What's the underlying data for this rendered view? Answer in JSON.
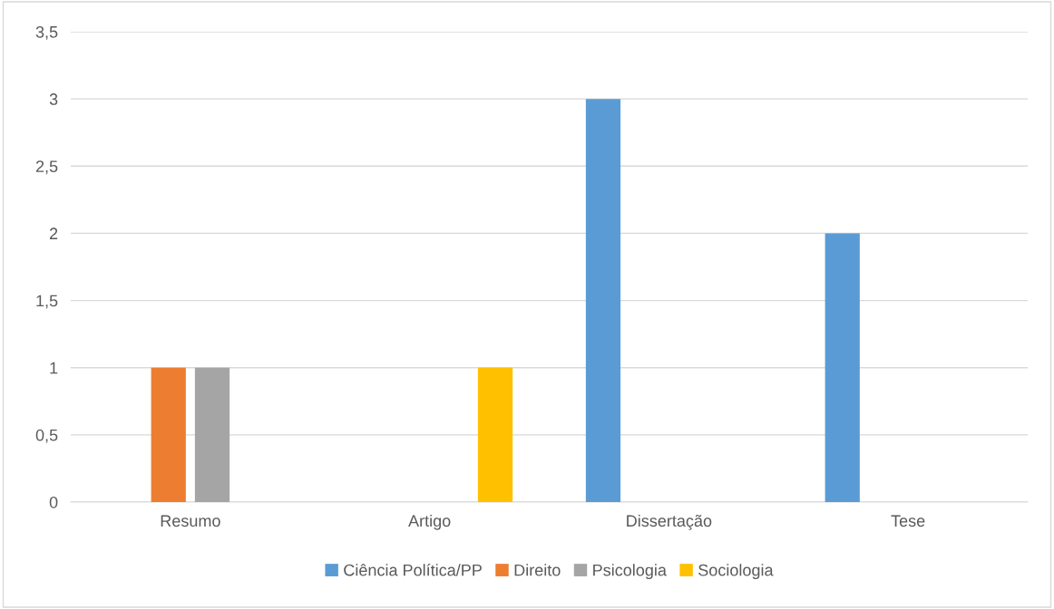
{
  "chart_data": {
    "type": "bar",
    "categories": [
      "Resumo",
      "Artigo",
      "Dissertação",
      "Tese"
    ],
    "series": [
      {
        "name": "Ciência Política/PP",
        "color": "#5b9bd5",
        "values": [
          0,
          0,
          3,
          2
        ]
      },
      {
        "name": "Direito",
        "color": "#ed7d31",
        "values": [
          1,
          0,
          0,
          0
        ]
      },
      {
        "name": "Psicologia",
        "color": "#a5a5a5",
        "values": [
          1,
          0,
          0,
          0
        ]
      },
      {
        "name": "Sociologia",
        "color": "#ffc000",
        "values": [
          0,
          1,
          0,
          0
        ]
      }
    ],
    "ylim": [
      0,
      3.5
    ],
    "yticks": [
      0,
      {
        "value": 0.5,
        "label": "0,5"
      },
      1,
      {
        "value": 1.5,
        "label": "1,5"
      },
      2,
      {
        "value": 2.5,
        "label": "2,5"
      },
      3,
      {
        "value": 3.5,
        "label": "3,5"
      }
    ],
    "grid": "y",
    "legend": "bottom"
  }
}
